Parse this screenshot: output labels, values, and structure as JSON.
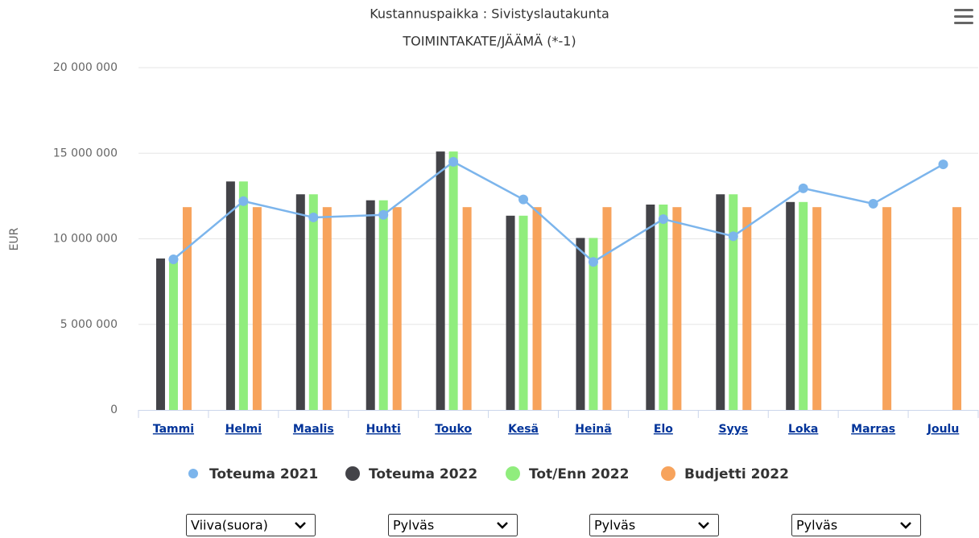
{
  "chart_data": {
    "type": "bar",
    "title": "Kustannuspaikka : Sivistyslautakunta",
    "subtitle": "TOIMINTAKATE/JÄÄMÄ (*-1)",
    "y_label": "EUR",
    "categories": [
      "Tammi",
      "Helmi",
      "Maalis",
      "Huhti",
      "Touko",
      "Kesä",
      "Heinä",
      "Elo",
      "Syys",
      "Loka",
      "Marras",
      "Joulu"
    ],
    "series": [
      {
        "name": "Toteuma 2021",
        "type": "line",
        "color": "#7cb5ec",
        "values": [
          8800000,
          12200000,
          11250000,
          11400000,
          14500000,
          12300000,
          8650000,
          11150000,
          10150000,
          12950000,
          12050000,
          14350000
        ]
      },
      {
        "name": "Toteuma 2022",
        "type": "bar",
        "color": "#434348",
        "values": [
          8850000,
          13350000,
          12600000,
          12250000,
          15100000,
          11350000,
          10050000,
          12000000,
          12600000,
          12150000,
          null,
          null
        ]
      },
      {
        "name": "Tot/Enn 2022",
        "type": "bar",
        "color": "#90ed7d",
        "values": [
          8850000,
          13350000,
          12600000,
          12250000,
          15100000,
          11350000,
          10050000,
          12000000,
          12600000,
          12150000,
          null,
          null
        ]
      },
      {
        "name": "Budjetti 2022",
        "type": "bar",
        "color": "#f7a35c",
        "values": [
          11850000,
          11850000,
          11850000,
          11850000,
          11850000,
          11850000,
          11850000,
          11850000,
          11850000,
          11850000,
          11850000,
          11850000
        ]
      }
    ],
    "ylim": [
      0,
      20000000
    ],
    "yticks": [
      0,
      {
        "value": 5000000,
        "label": "5 000 000"
      },
      {
        "value": 10000000,
        "label": "10 000 000"
      },
      {
        "value": 15000000,
        "label": "15 000 000"
      },
      {
        "value": 20000000,
        "label": "20 000 000"
      }
    ],
    "grid": true,
    "legend": "bottom",
    "controls": [
      "Viiva(suora)",
      "Pylväs",
      "Pylväs",
      "Pylväs"
    ]
  }
}
